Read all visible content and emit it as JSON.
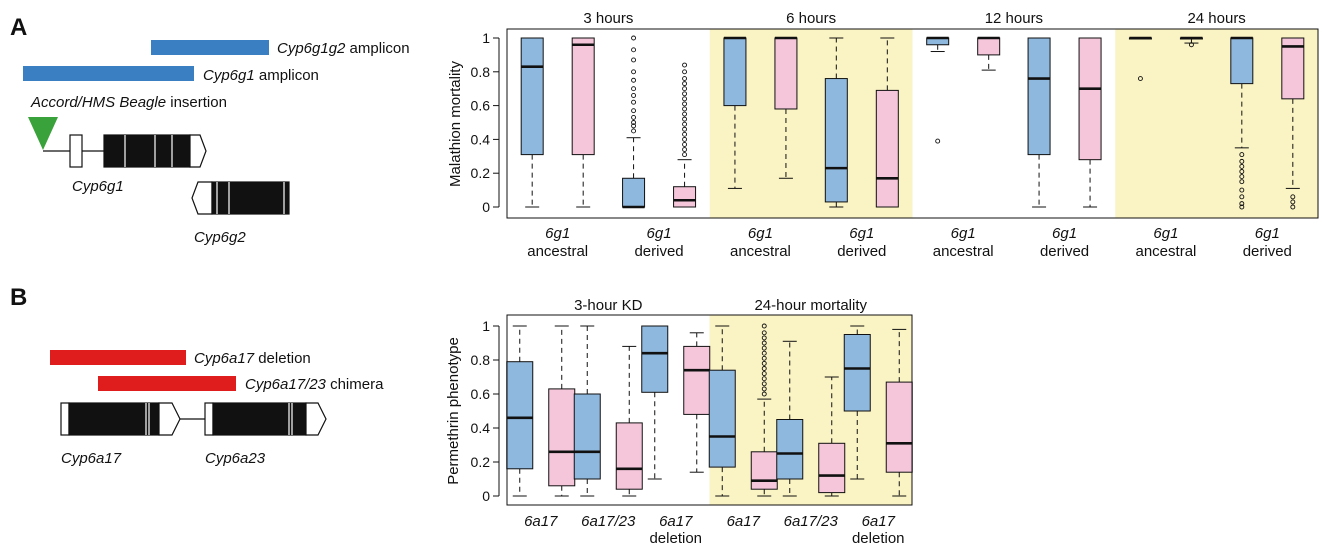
{
  "panel_a": {
    "letter": "A",
    "schematic": {
      "g1g2_amplicon": {
        "gene": "Cyp6g1g2",
        "suffix": " amplicon",
        "color": "#3a7fc1"
      },
      "g1_amplicon": {
        "gene": "Cyp6g1",
        "suffix": " amplicon",
        "color": "#3a7fc1"
      },
      "insertion": {
        "name": "Accord/HMS Beagle",
        "suffix": " insertion",
        "color": "#3aa23a"
      },
      "gene_labels": [
        "Cyp6g1",
        "Cyp6g2"
      ]
    }
  },
  "panel_b": {
    "letter": "B",
    "schematic": {
      "deletion": {
        "gene": "Cyp6a17",
        "suffix": " deletion",
        "color": "#e01d1d"
      },
      "chimera": {
        "gene": "Cyp6a17/23",
        "suffix": " chimera",
        "color": "#e01d1d"
      },
      "gene_labels": [
        "Cyp6a17",
        "Cyp6a23"
      ]
    }
  },
  "chart_data": [
    {
      "type": "box",
      "ylabel": "Malathion mortality",
      "ylim": [
        0,
        1
      ],
      "yticks": [
        "0",
        "0.2",
        "0.4",
        "0.6",
        "0.8",
        "1"
      ],
      "highlight_color": "#faf3c4",
      "series_colors": {
        "blue": "#8fb8de",
        "pink": "#f5c6da"
      },
      "groups": [
        {
          "title": "3 hours",
          "highlight": false,
          "categories": [
            {
              "line1": "6g1",
              "line2": "ancestral",
              "boxes": [
                {
                  "color": "blue",
                  "min": 0,
                  "q1": 0.31,
                  "median": 0.83,
                  "q3": 1,
                  "max": 1,
                  "outliers": []
                },
                {
                  "color": "pink",
                  "min": 0,
                  "q1": 0.31,
                  "median": 0.96,
                  "q3": 1,
                  "max": 1,
                  "outliers": []
                }
              ]
            },
            {
              "line1": "6g1",
              "line2": "derived",
              "boxes": [
                {
                  "color": "blue",
                  "min": 0,
                  "q1": 0,
                  "median": 0,
                  "q3": 0.17,
                  "max": 0.41,
                  "outliers": [
                    0.45,
                    0.48,
                    0.5,
                    0.53,
                    0.57,
                    0.62,
                    0.66,
                    0.7,
                    0.75,
                    0.8,
                    0.87,
                    0.93,
                    1
                  ]
                },
                {
                  "color": "pink",
                  "min": 0,
                  "q1": 0,
                  "median": 0.04,
                  "q3": 0.12,
                  "max": 0.28,
                  "outliers": [
                    0.31,
                    0.34,
                    0.37,
                    0.4,
                    0.43,
                    0.46,
                    0.49,
                    0.52,
                    0.55,
                    0.58,
                    0.61,
                    0.64,
                    0.67,
                    0.7,
                    0.73,
                    0.76,
                    0.8,
                    0.84
                  ]
                }
              ]
            }
          ]
        },
        {
          "title": "6 hours",
          "highlight": true,
          "categories": [
            {
              "line1": "6g1",
              "line2": "ancestral",
              "boxes": [
                {
                  "color": "blue",
                  "min": 0.11,
                  "q1": 0.6,
                  "median": 1,
                  "q3": 1,
                  "max": 1,
                  "outliers": []
                },
                {
                  "color": "pink",
                  "min": 0.17,
                  "q1": 0.58,
                  "median": 1,
                  "q3": 1,
                  "max": 1,
                  "outliers": []
                }
              ]
            },
            {
              "line1": "6g1",
              "line2": "derived",
              "boxes": [
                {
                  "color": "blue",
                  "min": 0,
                  "q1": 0.03,
                  "median": 0.23,
                  "q3": 0.76,
                  "max": 1,
                  "outliers": []
                },
                {
                  "color": "pink",
                  "min": 0,
                  "q1": 0,
                  "median": 0.17,
                  "q3": 0.69,
                  "max": 1,
                  "outliers": []
                }
              ]
            }
          ]
        },
        {
          "title": "12 hours",
          "highlight": false,
          "categories": [
            {
              "line1": "6g1",
              "line2": "ancestral",
              "boxes": [
                {
                  "color": "blue",
                  "min": 0.92,
                  "q1": 0.96,
                  "median": 1,
                  "q3": 1,
                  "max": 1,
                  "outliers": [
                    0.39
                  ]
                },
                {
                  "color": "pink",
                  "min": 0.81,
                  "q1": 0.9,
                  "median": 1,
                  "q3": 1,
                  "max": 1,
                  "outliers": []
                }
              ]
            },
            {
              "line1": "6g1",
              "line2": "derived",
              "boxes": [
                {
                  "color": "blue",
                  "min": 0,
                  "q1": 0.31,
                  "median": 0.76,
                  "q3": 1,
                  "max": 1,
                  "outliers": []
                },
                {
                  "color": "pink",
                  "min": 0,
                  "q1": 0.28,
                  "median": 0.7,
                  "q3": 1,
                  "max": 1,
                  "outliers": []
                }
              ]
            }
          ]
        },
        {
          "title": "24 hours",
          "highlight": true,
          "categories": [
            {
              "line1": "6g1",
              "line2": "ancestral",
              "boxes": [
                {
                  "color": "blue",
                  "min": 1,
                  "q1": 1,
                  "median": 1,
                  "q3": 1,
                  "max": 1,
                  "outliers": [
                    0.76
                  ]
                },
                {
                  "color": "pink",
                  "min": 0.97,
                  "q1": 1,
                  "median": 1,
                  "q3": 1,
                  "max": 1,
                  "outliers": [
                    0.96
                  ]
                }
              ]
            },
            {
              "line1": "6g1",
              "line2": "derived",
              "boxes": [
                {
                  "color": "blue",
                  "min": 0.35,
                  "q1": 0.73,
                  "median": 1,
                  "q3": 1,
                  "max": 1,
                  "outliers": [
                    0.31,
                    0.27,
                    0.24,
                    0.21,
                    0.18,
                    0.15,
                    0.1,
                    0.06,
                    0.02,
                    0
                  ]
                },
                {
                  "color": "pink",
                  "min": 0.11,
                  "q1": 0.64,
                  "median": 0.95,
                  "q3": 1,
                  "max": 1,
                  "outliers": [
                    0.06,
                    0.03,
                    0
                  ]
                }
              ]
            }
          ]
        }
      ]
    },
    {
      "type": "box",
      "ylabel": "Permethrin phenotype",
      "ylim": [
        0,
        1
      ],
      "yticks": [
        "0",
        "0.2",
        "0.4",
        "0.6",
        "0.8",
        "1"
      ],
      "highlight_color": "#faf3c4",
      "series_colors": {
        "blue": "#8fb8de",
        "pink": "#f5c6da"
      },
      "groups": [
        {
          "title": "3-hour KD",
          "highlight": false,
          "categories": [
            {
              "line1": "6a17",
              "line2": "",
              "boxes": [
                {
                  "color": "blue",
                  "min": 0,
                  "q1": 0.16,
                  "median": 0.46,
                  "q3": 0.79,
                  "max": 1,
                  "outliers": []
                },
                {
                  "color": "pink",
                  "min": 0,
                  "q1": 0.06,
                  "median": 0.26,
                  "q3": 0.63,
                  "max": 1,
                  "outliers": []
                }
              ]
            },
            {
              "line1": "6a17/23",
              "line2": "",
              "boxes": [
                {
                  "color": "blue",
                  "min": 0,
                  "q1": 0.1,
                  "median": 0.26,
                  "q3": 0.6,
                  "max": 1,
                  "outliers": []
                },
                {
                  "color": "pink",
                  "min": 0,
                  "q1": 0.04,
                  "median": 0.16,
                  "q3": 0.43,
                  "max": 0.88,
                  "outliers": []
                }
              ]
            },
            {
              "line1": "6a17",
              "line2": "deletion",
              "boxes": [
                {
                  "color": "blue",
                  "min": 0.1,
                  "q1": 0.61,
                  "median": 0.84,
                  "q3": 1,
                  "max": 1,
                  "outliers": []
                },
                {
                  "color": "pink",
                  "min": 0.14,
                  "q1": 0.48,
                  "median": 0.74,
                  "q3": 0.88,
                  "max": 0.96,
                  "outliers": []
                }
              ]
            }
          ]
        },
        {
          "title": "24-hour mortality",
          "highlight": true,
          "categories": [
            {
              "line1": "6a17",
              "line2": "",
              "boxes": [
                {
                  "color": "blue",
                  "min": 0,
                  "q1": 0.17,
                  "median": 0.35,
                  "q3": 0.74,
                  "max": 1,
                  "outliers": []
                },
                {
                  "color": "pink",
                  "min": 0,
                  "q1": 0.04,
                  "median": 0.09,
                  "q3": 0.26,
                  "max": 0.57,
                  "outliers": [
                    0.6,
                    0.63,
                    0.66,
                    0.69,
                    0.72,
                    0.75,
                    0.78,
                    0.81,
                    0.84,
                    0.87,
                    0.9,
                    0.93,
                    0.96,
                    1
                  ]
                }
              ]
            },
            {
              "line1": "6a17/23",
              "line2": "",
              "boxes": [
                {
                  "color": "blue",
                  "min": 0,
                  "q1": 0.1,
                  "median": 0.25,
                  "q3": 0.45,
                  "max": 0.91,
                  "outliers": []
                },
                {
                  "color": "pink",
                  "min": 0,
                  "q1": 0.02,
                  "median": 0.12,
                  "q3": 0.31,
                  "max": 0.7,
                  "outliers": []
                }
              ]
            },
            {
              "line1": "6a17",
              "line2": "deletion",
              "boxes": [
                {
                  "color": "blue",
                  "min": 0.1,
                  "q1": 0.5,
                  "median": 0.75,
                  "q3": 0.95,
                  "max": 1,
                  "outliers": []
                },
                {
                  "color": "pink",
                  "min": 0,
                  "q1": 0.14,
                  "median": 0.31,
                  "q3": 0.67,
                  "max": 0.98,
                  "outliers": []
                }
              ]
            }
          ]
        }
      ]
    }
  ]
}
